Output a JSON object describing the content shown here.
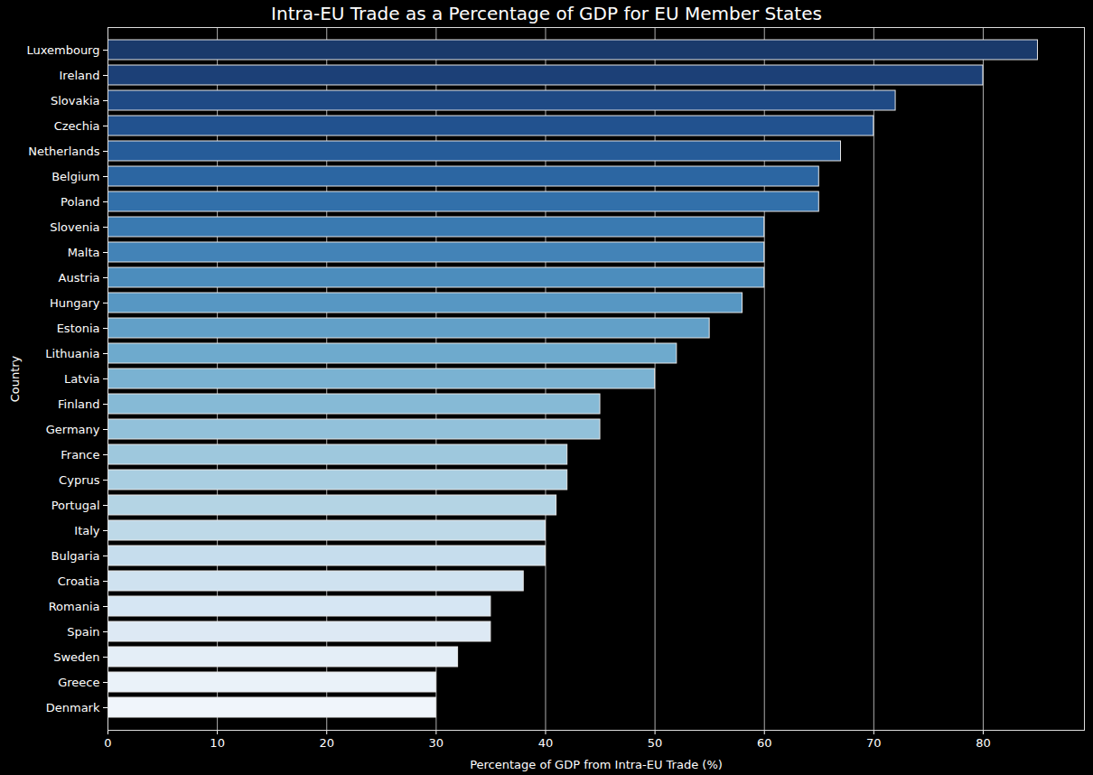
{
  "chart_data": {
    "type": "bar",
    "title": "Intra-EU Trade as a Percentage of GDP for EU Member States",
    "xlabel": "Percentage of GDP from Intra-EU Trade (%)",
    "ylabel": "Country",
    "orientation": "horizontal",
    "categories": [
      "Luxembourg",
      "Ireland",
      "Slovakia",
      "Czechia",
      "Netherlands",
      "Belgium",
      "Poland",
      "Slovenia",
      "Malta",
      "Austria",
      "Hungary",
      "Estonia",
      "Lithuania",
      "Latvia",
      "Finland",
      "Germany",
      "France",
      "Cyprus",
      "Portugal",
      "Italy",
      "Bulgaria",
      "Croatia",
      "Romania",
      "Spain",
      "Sweden",
      "Greece",
      "Denmark"
    ],
    "values": [
      85,
      80,
      72,
      70,
      67,
      65,
      65,
      60,
      60,
      60,
      58,
      55,
      52,
      50,
      45,
      45,
      42,
      42,
      41,
      40,
      40,
      38,
      35,
      35,
      32,
      30,
      30
    ],
    "colors": [
      "#1a3a6b",
      "#1c4077",
      "#1f4a85",
      "#22528f",
      "#265c99",
      "#2c66a2",
      "#3270aa",
      "#3a7ab1",
      "#4383b7",
      "#4c8dbd",
      "#5797c3",
      "#62a0c8",
      "#6eaacd",
      "#7ab2d2",
      "#86bad6",
      "#92c1da",
      "#9ec8dd",
      "#a9cee1",
      "#b4d4e4",
      "#bed9e8",
      "#c6dded",
      "#cfe2f0",
      "#d6e6f3",
      "#dde9f4",
      "#e4eef7",
      "#eaf2f9",
      "#f0f5fb"
    ],
    "xlim": [
      0,
      89.25
    ],
    "xticks": [
      0,
      10,
      20,
      30,
      40,
      50,
      60,
      70,
      80
    ],
    "grid": true
  }
}
